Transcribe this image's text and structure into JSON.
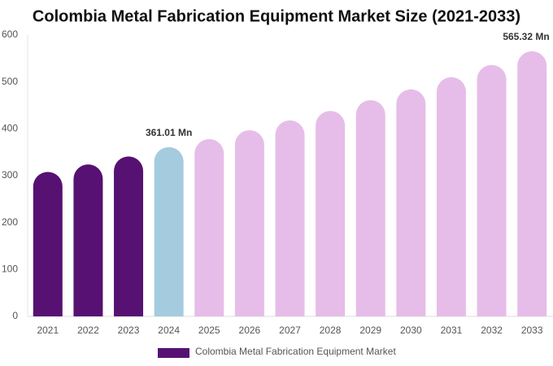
{
  "chart_data": {
    "type": "bar",
    "title": "Colombia Metal Fabrication Equipment Market Size (2021-2033)",
    "categories": [
      "2021",
      "2022",
      "2023",
      "2024",
      "2025",
      "2026",
      "2027",
      "2028",
      "2029",
      "2030",
      "2031",
      "2032",
      "2033"
    ],
    "series": [
      {
        "name": "Colombia Metal Fabrication Equipment Market",
        "color": "#561172",
        "values": [
          308,
          324,
          341,
          361.01,
          378,
          397,
          418,
          438,
          461,
          484,
          510,
          536,
          565.32
        ],
        "colors": [
          "#561172",
          "#561172",
          "#561172",
          "#a5cbdf",
          "#e6bde8",
          "#e6bde8",
          "#e6bde8",
          "#e6bde8",
          "#e6bde8",
          "#e6bde8",
          "#e6bde8",
          "#e6bde8",
          "#e6bde8"
        ],
        "value_labels": [
          null,
          null,
          null,
          "361.01 Mn",
          null,
          null,
          null,
          null,
          null,
          null,
          null,
          null,
          "565.32 Mn"
        ]
      }
    ],
    "ylim": [
      0,
      600
    ],
    "yticks": [
      0,
      100,
      200,
      300,
      400,
      500,
      600
    ],
    "grid": false
  }
}
